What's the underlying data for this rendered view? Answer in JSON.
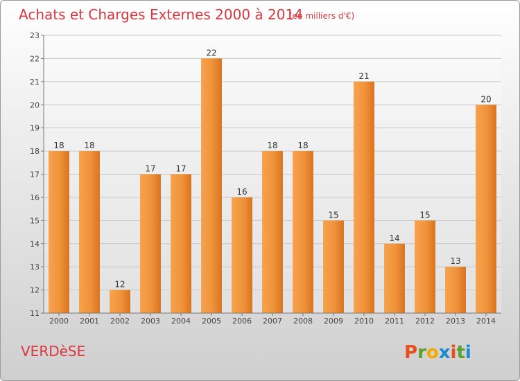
{
  "chart_data": {
    "type": "bar",
    "title": "Achats et Charges Externes 2000 à 2014",
    "subtitle": "(en milliers d'€)",
    "categories": [
      "2000",
      "2001",
      "2002",
      "2003",
      "2004",
      "2005",
      "2006",
      "2007",
      "2008",
      "2009",
      "2010",
      "2011",
      "2012",
      "2013",
      "2014"
    ],
    "series": [
      {
        "values": [
          18,
          18,
          12,
          17,
          17,
          22,
          16,
          18,
          18,
          15,
          21,
          14,
          15,
          13,
          20
        ]
      }
    ],
    "ylim": [
      11,
      23
    ],
    "yticks": [
      11,
      12,
      13,
      14,
      15,
      16,
      17,
      18,
      19,
      20,
      21,
      22,
      23
    ],
    "grid": "horizontal",
    "legend": "none",
    "bar_color": "#f0933a",
    "bar_color_dark": "#d96f1a"
  },
  "footer": {
    "commune": "VERDèSE",
    "logo": "Proxiti",
    "logo_colors": [
      "#e94e1b",
      "#5aa02c",
      "#f2a900",
      "#1c8ad0",
      "#e94e1b",
      "#5aa02c",
      "#1c8ad0"
    ]
  }
}
